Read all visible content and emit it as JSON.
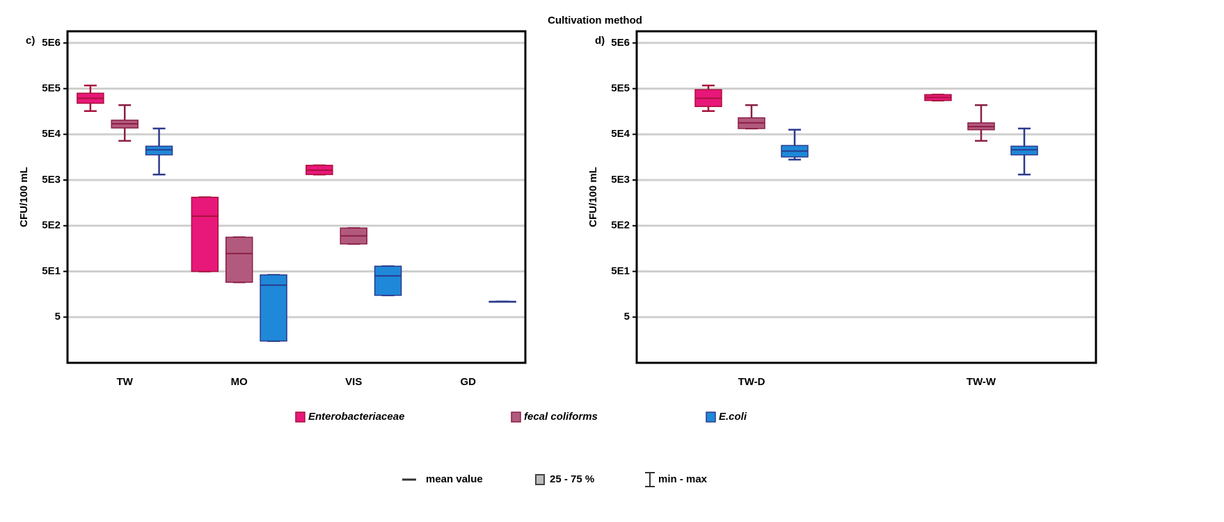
{
  "title": "Cultivation method",
  "legend_keys": {
    "mean": "mean value",
    "box": "25 - 75 %",
    "whisker": "min - max"
  },
  "chart_data": [
    {
      "type": "box",
      "label": "c)",
      "ylabel": "CFU/100 mL",
      "log_scale": true,
      "grid": true,
      "categories": [
        "TW",
        "MO",
        "VIS",
        "GD"
      ],
      "ylim": [
        0.5,
        9000000
      ],
      "yticks": [
        {
          "value": 5,
          "label": "5"
        },
        {
          "value": 50,
          "label": "5E1"
        },
        {
          "value": 500,
          "label": "5E2"
        },
        {
          "value": 5000,
          "label": "5E3"
        },
        {
          "value": 50000,
          "label": "5E4"
        },
        {
          "value": 500000,
          "label": "5E5"
        },
        {
          "value": 5000000,
          "label": "5E6"
        }
      ],
      "series": [
        {
          "name": "Enterobacteriaceae",
          "color": "#e8177a",
          "edge_color": "#a8123c",
          "q1": [
            239000,
            50,
            6600,
            null
          ],
          "q3": [
            397000,
            2100,
            10500,
            null
          ],
          "mean": [
            308000,
            810,
            8200,
            null
          ],
          "min": [
            162000,
            50,
            6600,
            null
          ],
          "max": [
            587000,
            2100,
            10500,
            null
          ]
        },
        {
          "name": "fecal coliforms",
          "color": "#b25a7e",
          "edge_color": "#8a1f45",
          "q1": [
            69000,
            29,
            200,
            null
          ],
          "q3": [
            102000,
            280,
            445,
            null
          ],
          "mean": [
            85000,
            123,
            300,
            null
          ],
          "min": [
            36000,
            29,
            200,
            null
          ],
          "max": [
            218000,
            280,
            445,
            null
          ]
        },
        {
          "name": "E.coli",
          "color": "#1f88d8",
          "edge_color": "#2b3a8c",
          "q1": [
            17800,
            1.5,
            15,
            11
          ],
          "q3": [
            27500,
            42,
            65,
            11
          ],
          "mean": [
            23000,
            25,
            40,
            11
          ],
          "min": [
            6600,
            1.5,
            15,
            11
          ],
          "max": [
            67000,
            42,
            65,
            11
          ]
        }
      ]
    },
    {
      "type": "box",
      "label": "d)",
      "ylabel": "CFU/100 mL",
      "log_scale": true,
      "grid": true,
      "categories": [
        "TW-D",
        "TW-W"
      ],
      "ylim": [
        0.5,
        9000000
      ],
      "yticks": [
        {
          "value": 5,
          "label": "5"
        },
        {
          "value": 50,
          "label": "5E1"
        },
        {
          "value": 500,
          "label": "5E2"
        },
        {
          "value": 5000,
          "label": "5E3"
        },
        {
          "value": 50000,
          "label": "5E4"
        },
        {
          "value": 500000,
          "label": "5E5"
        },
        {
          "value": 5000000,
          "label": "5E6"
        }
      ],
      "series": [
        {
          "name": "Enterobacteriaceae",
          "color": "#e8177a",
          "edge_color": "#a8123c",
          "q1": [
            203000,
            275000
          ],
          "q3": [
            475000,
            370000
          ],
          "mean": [
            308000,
            320000
          ],
          "min": [
            162000,
            275000
          ],
          "max": [
            587000,
            370000
          ]
        },
        {
          "name": "fecal coliforms",
          "color": "#b25a7e",
          "edge_color": "#8a1f45",
          "q1": [
            67000,
            63000
          ],
          "q3": [
            115000,
            89000
          ],
          "mean": [
            89000,
            74000
          ],
          "min": [
            67000,
            36000
          ],
          "max": [
            218000,
            218000
          ]
        },
        {
          "name": "E.coli",
          "color": "#1f88d8",
          "edge_color": "#2b3a8c",
          "q1": [
            16000,
            17800
          ],
          "q3": [
            28500,
            27500
          ],
          "mean": [
            21500,
            23000
          ],
          "min": [
            14000,
            6600
          ],
          "max": [
            63000,
            67000
          ]
        }
      ]
    }
  ]
}
